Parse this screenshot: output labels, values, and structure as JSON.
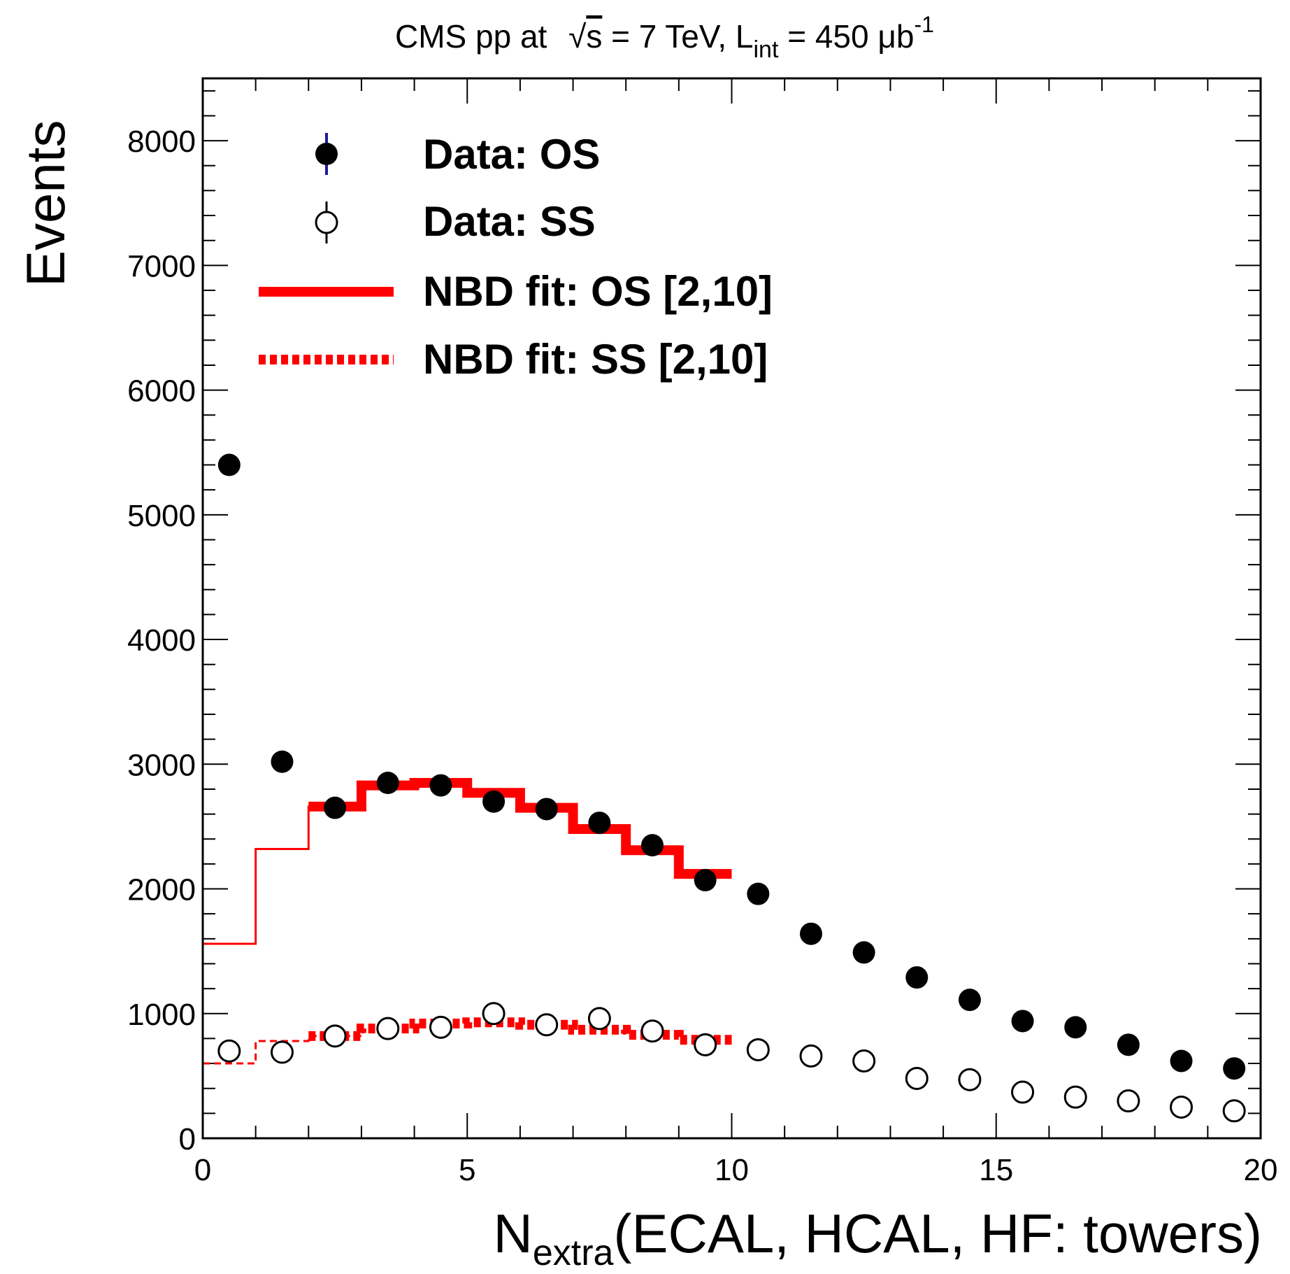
{
  "chart_data": {
    "type": "scatter",
    "title": {
      "prefix": "CMS pp at ",
      "sqrt_symbol": "√",
      "sqrt_arg": "s",
      "energy": " = 7 TeV, L",
      "lumi_sub": "int",
      "lumi_value": " = 450 μb",
      "lumi_sup": "-1"
    },
    "xlabel": {
      "main": "N",
      "sub": "extra",
      "rest": "(ECAL, HCAL, HF: towers)"
    },
    "ylabel": "Events",
    "xlim": [
      0,
      20
    ],
    "ylim": [
      0,
      8500
    ],
    "x_ticks": [
      0,
      5,
      10,
      15,
      20
    ],
    "y_ticks": [
      0,
      1000,
      2000,
      3000,
      4000,
      5000,
      6000,
      7000,
      8000
    ],
    "legend": {
      "position": "top-left",
      "entries": [
        {
          "key": "os",
          "label": "Data: OS"
        },
        {
          "key": "ss",
          "label": "Data: SS"
        },
        {
          "key": "fit_os",
          "label": "NBD fit: OS [2,10]"
        },
        {
          "key": "fit_ss",
          "label": "NBD fit: SS [2,10]"
        }
      ]
    },
    "series": [
      {
        "name": "Data: OS",
        "marker": "filled-circle",
        "x": [
          0.5,
          1.5,
          2.5,
          3.5,
          4.5,
          5.5,
          6.5,
          7.5,
          8.5,
          9.5,
          10.5,
          11.5,
          12.5,
          13.5,
          14.5,
          15.5,
          16.5,
          17.5,
          18.5,
          19.5
        ],
        "y": [
          5400,
          3020,
          2650,
          2850,
          2830,
          2700,
          2640,
          2530,
          2350,
          2070,
          1960,
          1640,
          1490,
          1290,
          1110,
          940,
          890,
          750,
          620,
          560
        ]
      },
      {
        "name": "Data: SS",
        "marker": "open-circle",
        "x": [
          0.5,
          1.5,
          2.5,
          3.5,
          4.5,
          5.5,
          6.5,
          7.5,
          8.5,
          9.5,
          10.5,
          11.5,
          12.5,
          13.5,
          14.5,
          15.5,
          16.5,
          17.5,
          18.5,
          19.5
        ],
        "y": [
          700,
          690,
          820,
          880,
          890,
          1000,
          910,
          960,
          860,
          750,
          710,
          660,
          620,
          480,
          470,
          370,
          330,
          300,
          250,
          220
        ]
      },
      {
        "name": "NBD fit: OS [2,10]",
        "style": "step-solid",
        "fit_range": [
          2,
          10
        ],
        "edges": [
          0,
          1,
          2,
          3,
          4,
          5,
          6,
          7,
          8,
          9,
          10
        ],
        "values": [
          1560,
          2320,
          2660,
          2830,
          2850,
          2770,
          2650,
          2480,
          2310,
          2120
        ]
      },
      {
        "name": "NBD fit: SS [2,10]",
        "style": "step-dashed",
        "fit_range": [
          2,
          10
        ],
        "edges": [
          0,
          1,
          2,
          3,
          4,
          5,
          6,
          7,
          8,
          9,
          10
        ],
        "values": [
          600,
          780,
          820,
          880,
          920,
          930,
          910,
          870,
          830,
          790
        ]
      }
    ]
  },
  "colors": {
    "fit": "#ff0000",
    "frame": "#000000",
    "marker": "#000000",
    "legend_error_bar": "#1a1aa0"
  }
}
